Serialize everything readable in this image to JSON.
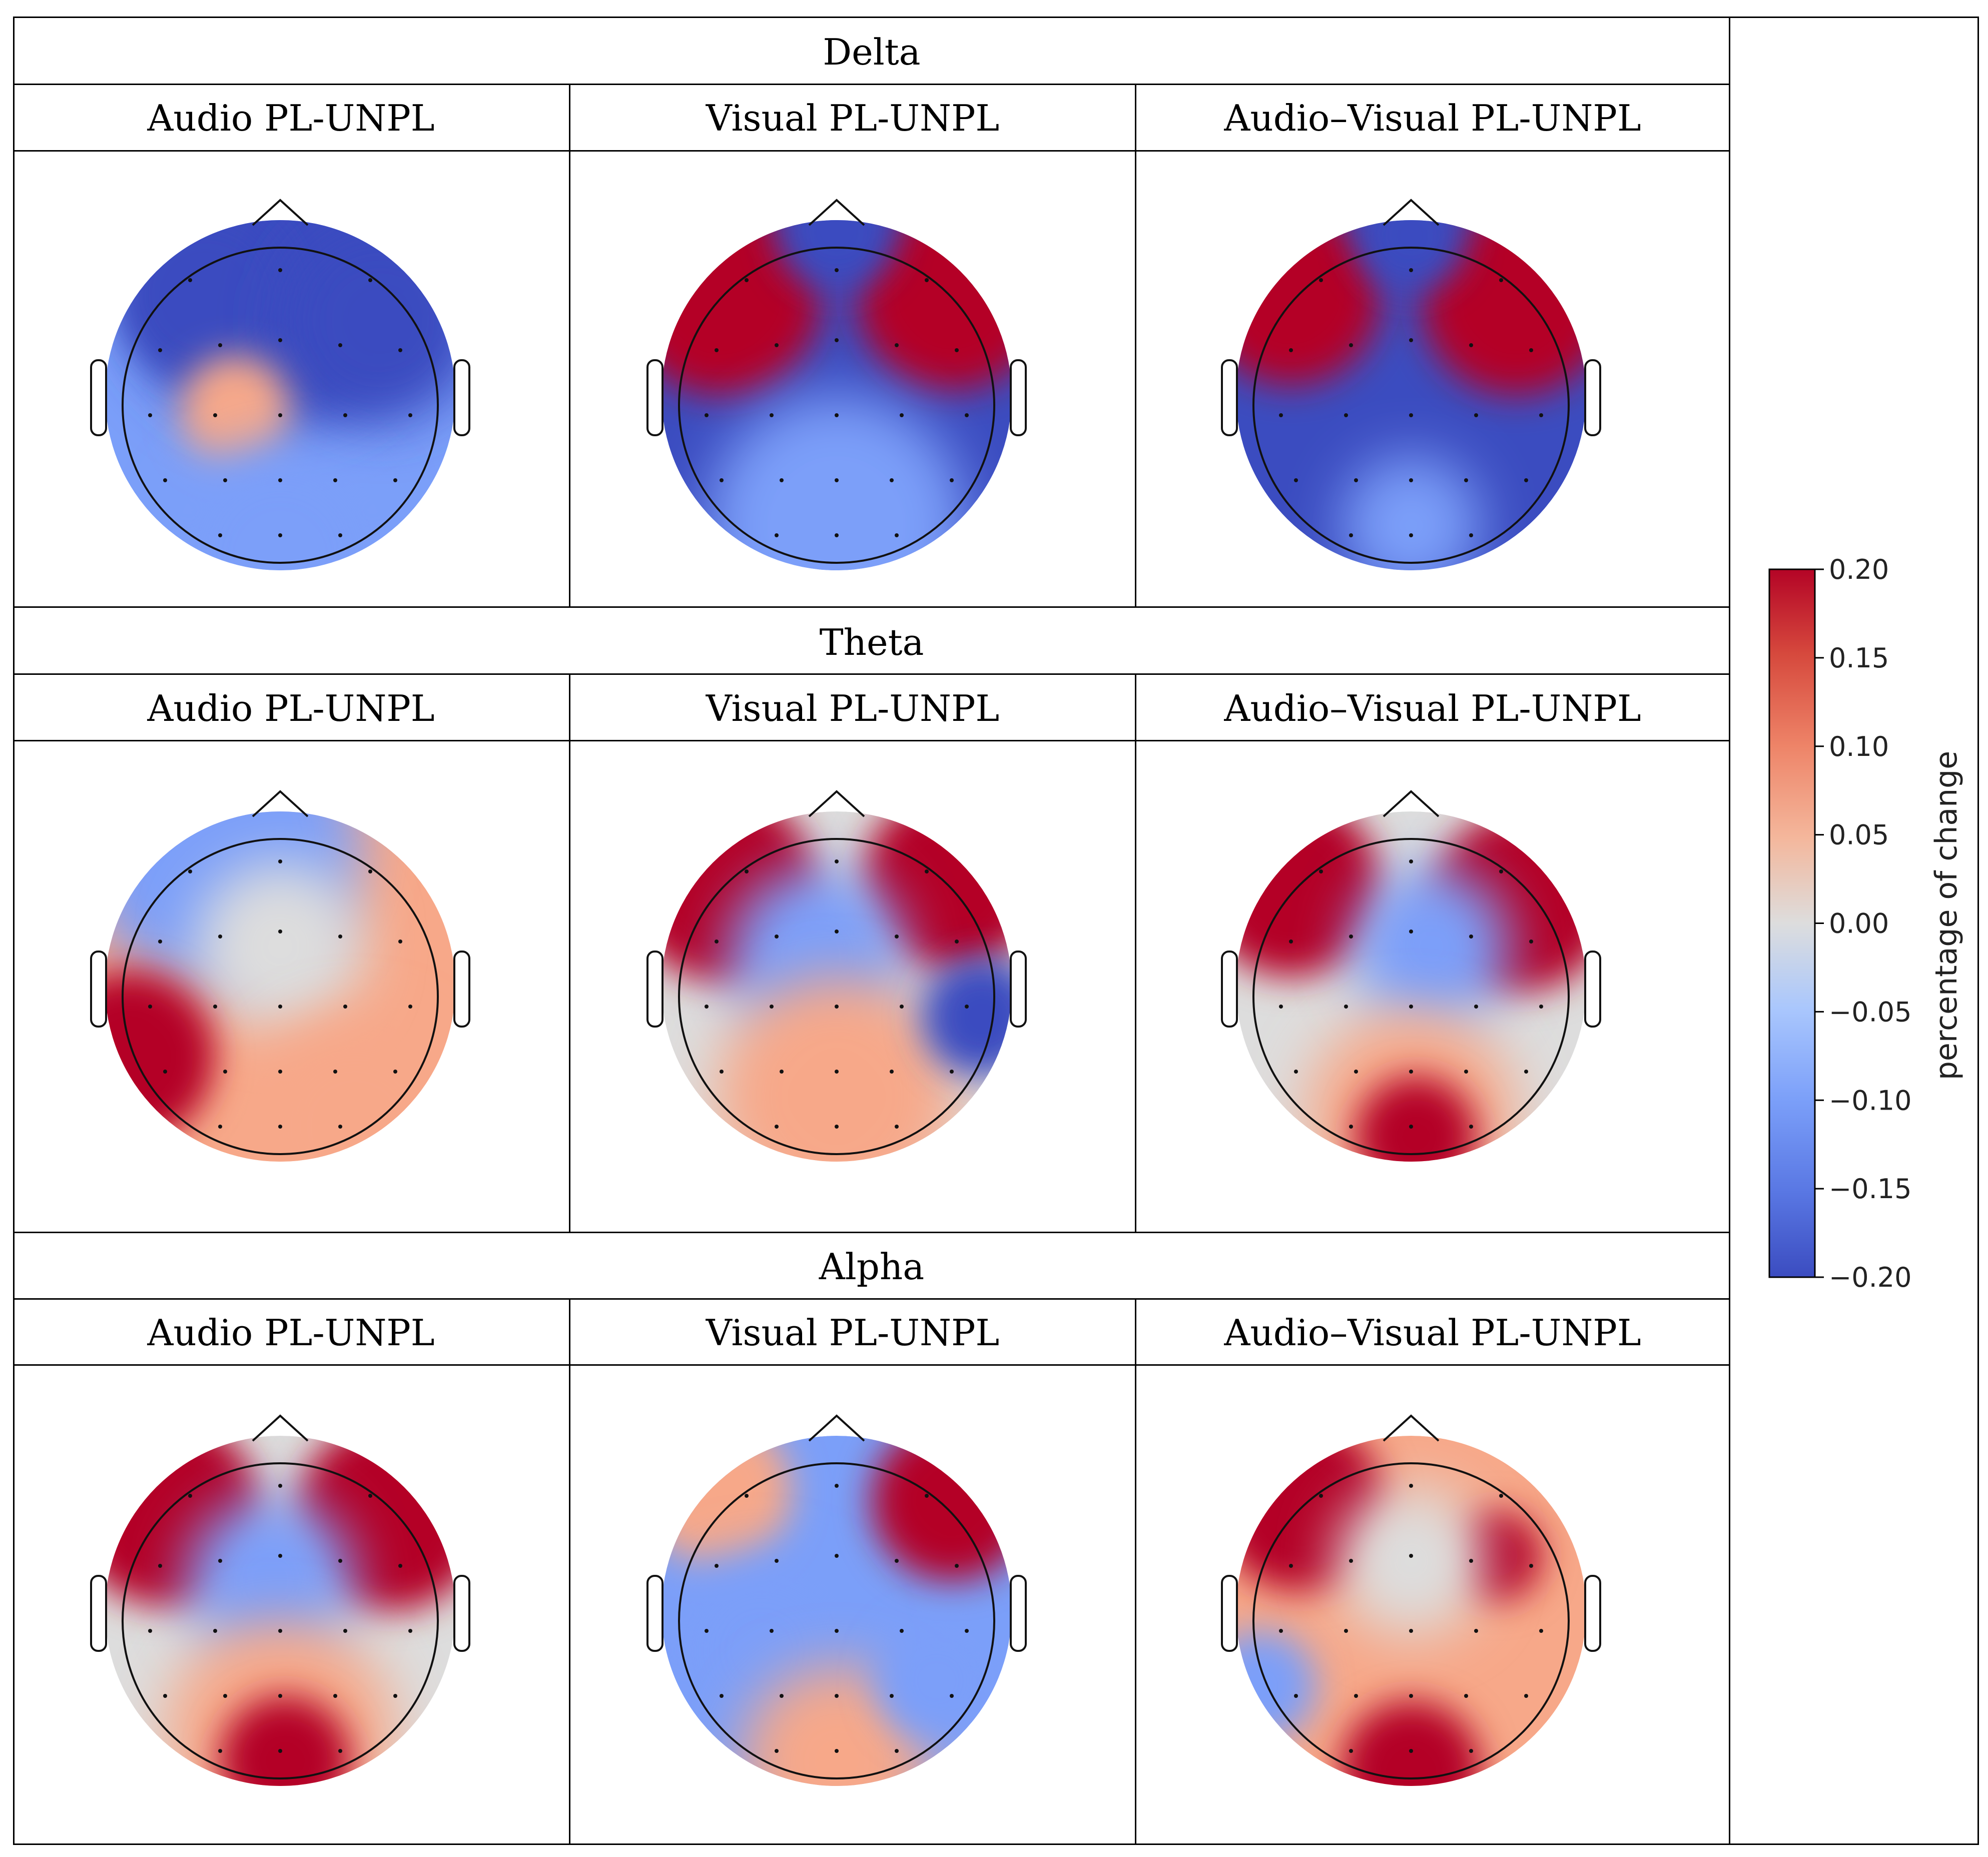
{
  "figure": {
    "bands": [
      {
        "name": "Delta",
        "columns": [
          "Audio PL-UNPL",
          "Visual PL-UNPL",
          "Audio–Visual PL-UNPL"
        ]
      },
      {
        "name": "Theta",
        "columns": [
          "Audio PL-UNPL",
          "Visual PL-UNPL",
          "Audio–Visual PL-UNPL"
        ]
      },
      {
        "name": "Alpha",
        "columns": [
          "Audio PL-UNPL",
          "Visual PL-UNPL",
          "Audio–Visual PL-UNPL"
        ]
      }
    ]
  },
  "colorbar": {
    "label": "percentage of change",
    "ticks": [
      "0.20",
      "0.15",
      "0.10",
      "0.05",
      "0.00",
      "−0.05",
      "−0.10",
      "−0.15",
      "−0.20"
    ],
    "range": [
      -0.2,
      0.2
    ],
    "colors": {
      "min": "#3b4cc0",
      "low": "#7b9ff9",
      "mid": "#dddddd",
      "high": "#f7a889",
      "max": "#b40426"
    }
  }
}
